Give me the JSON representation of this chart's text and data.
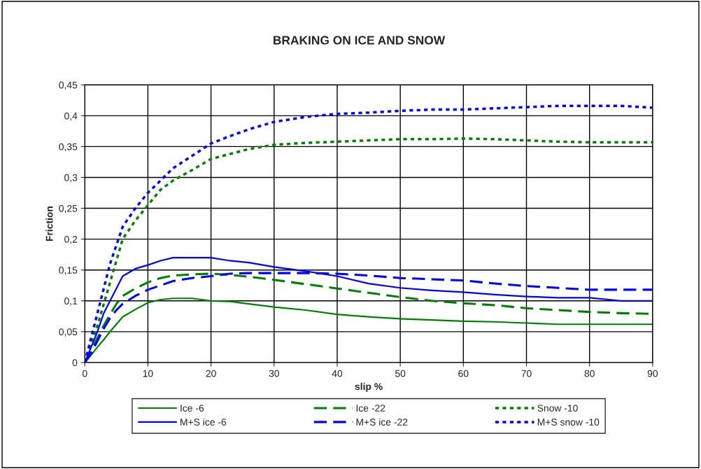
{
  "chart_data": {
    "type": "line",
    "title": "BRAKING ON ICE AND SNOW",
    "xlabel": "slip %",
    "ylabel": "Friction",
    "x": [
      0,
      1,
      2,
      3,
      4,
      5,
      6,
      8,
      10,
      12,
      14,
      17,
      20,
      23,
      26,
      30,
      35,
      40,
      45,
      50,
      55,
      60,
      65,
      70,
      75,
      80,
      85,
      90
    ],
    "xlim": [
      0,
      90
    ],
    "xticks": [
      0,
      10,
      20,
      30,
      40,
      50,
      60,
      70,
      80,
      90
    ],
    "ylim": [
      0,
      0.45
    ],
    "yticks": [
      0,
      {
        "value": 0.05,
        "label": "0,05"
      },
      {
        "value": 0.1,
        "label": "0,1"
      },
      {
        "value": 0.15,
        "label": "0,15"
      },
      {
        "value": 0.2,
        "label": "0,2"
      },
      {
        "value": 0.25,
        "label": "0,25"
      },
      {
        "value": 0.3,
        "label": "0,3"
      },
      {
        "value": 0.35,
        "label": "0,35"
      },
      {
        "value": 0.4,
        "label": "0,4"
      },
      {
        "value": 0.45,
        "label": "0,45"
      }
    ],
    "grid": true,
    "legend": "bottom",
    "marker": "none",
    "series": [
      {
        "name": "Ice -6",
        "color": "#008000",
        "line_style": "solid",
        "values": [
          0,
          0.012,
          0.025,
          0.037,
          0.05,
          0.062,
          0.074,
          0.086,
          0.097,
          0.102,
          0.104,
          0.104,
          0.1,
          0.099,
          0.095,
          0.09,
          0.085,
          0.078,
          0.074,
          0.071,
          0.069,
          0.067,
          0.066,
          0.064,
          0.062,
          0.062,
          0.062,
          0.062
        ]
      },
      {
        "name": "Ice -22",
        "color": "#008000",
        "line_style": "dashed",
        "values": [
          0,
          0.02,
          0.04,
          0.06,
          0.078,
          0.095,
          0.108,
          0.12,
          0.13,
          0.137,
          0.141,
          0.143,
          0.144,
          0.142,
          0.139,
          0.134,
          0.127,
          0.12,
          0.113,
          0.106,
          0.1,
          0.096,
          0.093,
          0.088,
          0.085,
          0.082,
          0.08,
          0.079
        ]
      },
      {
        "name": "Snow -10",
        "color": "#008000",
        "line_style": "dotted",
        "values": [
          0,
          0.03,
          0.06,
          0.095,
          0.13,
          0.165,
          0.2,
          0.23,
          0.255,
          0.28,
          0.295,
          0.312,
          0.33,
          0.338,
          0.346,
          0.353,
          0.356,
          0.358,
          0.36,
          0.362,
          0.362,
          0.363,
          0.362,
          0.36,
          0.358,
          0.357,
          0.357,
          0.357
        ]
      },
      {
        "name": "M+S ice -6",
        "color": "#0000ff",
        "line_style": "solid",
        "values": [
          0,
          0.025,
          0.05,
          0.08,
          0.1,
          0.12,
          0.14,
          0.152,
          0.158,
          0.165,
          0.17,
          0.17,
          0.17,
          0.165,
          0.162,
          0.155,
          0.148,
          0.14,
          0.128,
          0.121,
          0.117,
          0.114,
          0.11,
          0.107,
          0.105,
          0.105,
          0.1,
          0.1
        ]
      },
      {
        "name": "M+S ice -22",
        "color": "#0000ff",
        "line_style": "dashed",
        "values": [
          0,
          0.015,
          0.035,
          0.055,
          0.072,
          0.085,
          0.095,
          0.108,
          0.118,
          0.125,
          0.132,
          0.137,
          0.14,
          0.144,
          0.145,
          0.145,
          0.145,
          0.144,
          0.141,
          0.137,
          0.135,
          0.133,
          0.128,
          0.124,
          0.121,
          0.118,
          0.118,
          0.118
        ]
      },
      {
        "name": "M+S snow -10",
        "color": "#0000ff",
        "line_style": "dotted",
        "values": [
          0,
          0.04,
          0.08,
          0.12,
          0.16,
          0.19,
          0.22,
          0.25,
          0.275,
          0.295,
          0.315,
          0.335,
          0.355,
          0.367,
          0.378,
          0.39,
          0.398,
          0.403,
          0.405,
          0.408,
          0.41,
          0.41,
          0.412,
          0.414,
          0.416,
          0.416,
          0.416,
          0.413
        ]
      }
    ]
  }
}
